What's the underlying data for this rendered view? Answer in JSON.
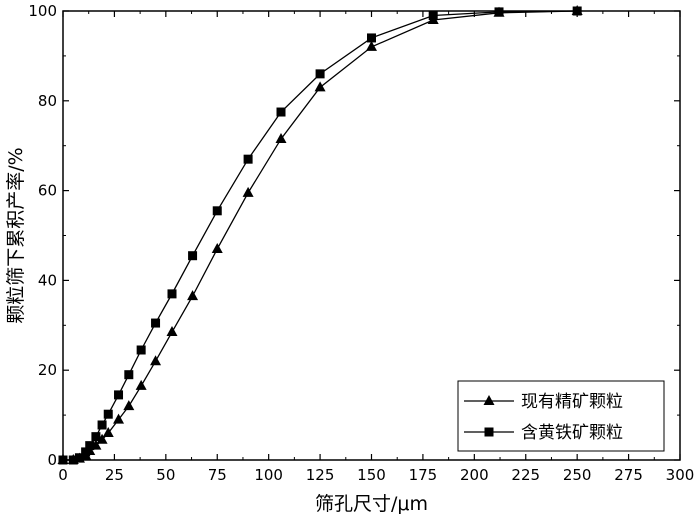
{
  "chart_data": {
    "type": "line",
    "xlabel": "筛孔尺寸/μm",
    "ylabel": "颗粒筛下累积产率/%",
    "xlim": [
      0,
      300
    ],
    "ylim": [
      0,
      100
    ],
    "x_ticks": [
      0,
      25,
      50,
      75,
      100,
      125,
      150,
      175,
      200,
      225,
      250,
      275,
      300
    ],
    "y_ticks": [
      0,
      20,
      40,
      60,
      80,
      100
    ],
    "grid": false,
    "legend_position": "bottom-right",
    "series": [
      {
        "name": "现有精矿颗粒",
        "marker": "triangle",
        "x": [
          0,
          5,
          8,
          11,
          13,
          16,
          19,
          22,
          27,
          32,
          38,
          45,
          53,
          63,
          75,
          90,
          106,
          125,
          150,
          180,
          212,
          250
        ],
        "y": [
          0,
          0,
          0.3,
          1,
          2,
          3.2,
          4.5,
          6,
          9,
          12,
          16.5,
          22,
          28.5,
          36.5,
          47,
          59.5,
          71.5,
          83,
          92,
          98,
          99.6,
          100
        ]
      },
      {
        "name": "含黄铁矿颗粒",
        "marker": "square",
        "x": [
          0,
          5,
          8,
          11,
          13,
          16,
          19,
          22,
          27,
          32,
          38,
          45,
          53,
          63,
          75,
          90,
          106,
          125,
          150,
          180,
          212,
          250
        ],
        "y": [
          0,
          0,
          0.5,
          1.8,
          3.2,
          5.2,
          7.8,
          10.2,
          14.5,
          19,
          24.5,
          30.5,
          37,
          45.5,
          55.5,
          67,
          77.5,
          86,
          94,
          99,
          99.8,
          100
        ]
      }
    ]
  }
}
